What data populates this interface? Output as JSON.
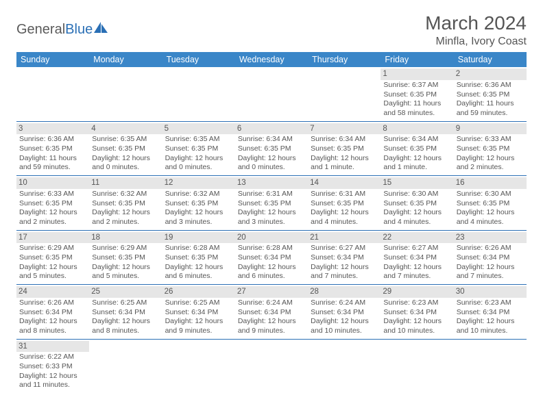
{
  "logo": {
    "part1": "General",
    "part2": "Blue"
  },
  "title": "March 2024",
  "location": "Minfla, Ivory Coast",
  "colors": {
    "header_bg": "#3a86c8",
    "header_text": "#ffffff",
    "daynum_bg": "#e6e6e6",
    "row_border": "#2a6fb5",
    "text": "#555555",
    "logo_blue": "#2a6fb5"
  },
  "day_headers": [
    "Sunday",
    "Monday",
    "Tuesday",
    "Wednesday",
    "Thursday",
    "Friday",
    "Saturday"
  ],
  "weeks": [
    [
      {
        "n": "",
        "sr": "",
        "ss": "",
        "dl": ""
      },
      {
        "n": "",
        "sr": "",
        "ss": "",
        "dl": ""
      },
      {
        "n": "",
        "sr": "",
        "ss": "",
        "dl": ""
      },
      {
        "n": "",
        "sr": "",
        "ss": "",
        "dl": ""
      },
      {
        "n": "",
        "sr": "",
        "ss": "",
        "dl": ""
      },
      {
        "n": "1",
        "sr": "Sunrise: 6:37 AM",
        "ss": "Sunset: 6:35 PM",
        "dl": "Daylight: 11 hours and 58 minutes."
      },
      {
        "n": "2",
        "sr": "Sunrise: 6:36 AM",
        "ss": "Sunset: 6:35 PM",
        "dl": "Daylight: 11 hours and 59 minutes."
      }
    ],
    [
      {
        "n": "3",
        "sr": "Sunrise: 6:36 AM",
        "ss": "Sunset: 6:35 PM",
        "dl": "Daylight: 11 hours and 59 minutes."
      },
      {
        "n": "4",
        "sr": "Sunrise: 6:35 AM",
        "ss": "Sunset: 6:35 PM",
        "dl": "Daylight: 12 hours and 0 minutes."
      },
      {
        "n": "5",
        "sr": "Sunrise: 6:35 AM",
        "ss": "Sunset: 6:35 PM",
        "dl": "Daylight: 12 hours and 0 minutes."
      },
      {
        "n": "6",
        "sr": "Sunrise: 6:34 AM",
        "ss": "Sunset: 6:35 PM",
        "dl": "Daylight: 12 hours and 0 minutes."
      },
      {
        "n": "7",
        "sr": "Sunrise: 6:34 AM",
        "ss": "Sunset: 6:35 PM",
        "dl": "Daylight: 12 hours and 1 minute."
      },
      {
        "n": "8",
        "sr": "Sunrise: 6:34 AM",
        "ss": "Sunset: 6:35 PM",
        "dl": "Daylight: 12 hours and 1 minute."
      },
      {
        "n": "9",
        "sr": "Sunrise: 6:33 AM",
        "ss": "Sunset: 6:35 PM",
        "dl": "Daylight: 12 hours and 2 minutes."
      }
    ],
    [
      {
        "n": "10",
        "sr": "Sunrise: 6:33 AM",
        "ss": "Sunset: 6:35 PM",
        "dl": "Daylight: 12 hours and 2 minutes."
      },
      {
        "n": "11",
        "sr": "Sunrise: 6:32 AM",
        "ss": "Sunset: 6:35 PM",
        "dl": "Daylight: 12 hours and 2 minutes."
      },
      {
        "n": "12",
        "sr": "Sunrise: 6:32 AM",
        "ss": "Sunset: 6:35 PM",
        "dl": "Daylight: 12 hours and 3 minutes."
      },
      {
        "n": "13",
        "sr": "Sunrise: 6:31 AM",
        "ss": "Sunset: 6:35 PM",
        "dl": "Daylight: 12 hours and 3 minutes."
      },
      {
        "n": "14",
        "sr": "Sunrise: 6:31 AM",
        "ss": "Sunset: 6:35 PM",
        "dl": "Daylight: 12 hours and 4 minutes."
      },
      {
        "n": "15",
        "sr": "Sunrise: 6:30 AM",
        "ss": "Sunset: 6:35 PM",
        "dl": "Daylight: 12 hours and 4 minutes."
      },
      {
        "n": "16",
        "sr": "Sunrise: 6:30 AM",
        "ss": "Sunset: 6:35 PM",
        "dl": "Daylight: 12 hours and 4 minutes."
      }
    ],
    [
      {
        "n": "17",
        "sr": "Sunrise: 6:29 AM",
        "ss": "Sunset: 6:35 PM",
        "dl": "Daylight: 12 hours and 5 minutes."
      },
      {
        "n": "18",
        "sr": "Sunrise: 6:29 AM",
        "ss": "Sunset: 6:35 PM",
        "dl": "Daylight: 12 hours and 5 minutes."
      },
      {
        "n": "19",
        "sr": "Sunrise: 6:28 AM",
        "ss": "Sunset: 6:35 PM",
        "dl": "Daylight: 12 hours and 6 minutes."
      },
      {
        "n": "20",
        "sr": "Sunrise: 6:28 AM",
        "ss": "Sunset: 6:34 PM",
        "dl": "Daylight: 12 hours and 6 minutes."
      },
      {
        "n": "21",
        "sr": "Sunrise: 6:27 AM",
        "ss": "Sunset: 6:34 PM",
        "dl": "Daylight: 12 hours and 7 minutes."
      },
      {
        "n": "22",
        "sr": "Sunrise: 6:27 AM",
        "ss": "Sunset: 6:34 PM",
        "dl": "Daylight: 12 hours and 7 minutes."
      },
      {
        "n": "23",
        "sr": "Sunrise: 6:26 AM",
        "ss": "Sunset: 6:34 PM",
        "dl": "Daylight: 12 hours and 7 minutes."
      }
    ],
    [
      {
        "n": "24",
        "sr": "Sunrise: 6:26 AM",
        "ss": "Sunset: 6:34 PM",
        "dl": "Daylight: 12 hours and 8 minutes."
      },
      {
        "n": "25",
        "sr": "Sunrise: 6:25 AM",
        "ss": "Sunset: 6:34 PM",
        "dl": "Daylight: 12 hours and 8 minutes."
      },
      {
        "n": "26",
        "sr": "Sunrise: 6:25 AM",
        "ss": "Sunset: 6:34 PM",
        "dl": "Daylight: 12 hours and 9 minutes."
      },
      {
        "n": "27",
        "sr": "Sunrise: 6:24 AM",
        "ss": "Sunset: 6:34 PM",
        "dl": "Daylight: 12 hours and 9 minutes."
      },
      {
        "n": "28",
        "sr": "Sunrise: 6:24 AM",
        "ss": "Sunset: 6:34 PM",
        "dl": "Daylight: 12 hours and 10 minutes."
      },
      {
        "n": "29",
        "sr": "Sunrise: 6:23 AM",
        "ss": "Sunset: 6:34 PM",
        "dl": "Daylight: 12 hours and 10 minutes."
      },
      {
        "n": "30",
        "sr": "Sunrise: 6:23 AM",
        "ss": "Sunset: 6:34 PM",
        "dl": "Daylight: 12 hours and 10 minutes."
      }
    ],
    [
      {
        "n": "31",
        "sr": "Sunrise: 6:22 AM",
        "ss": "Sunset: 6:33 PM",
        "dl": "Daylight: 12 hours and 11 minutes."
      },
      {
        "n": "",
        "sr": "",
        "ss": "",
        "dl": ""
      },
      {
        "n": "",
        "sr": "",
        "ss": "",
        "dl": ""
      },
      {
        "n": "",
        "sr": "",
        "ss": "",
        "dl": ""
      },
      {
        "n": "",
        "sr": "",
        "ss": "",
        "dl": ""
      },
      {
        "n": "",
        "sr": "",
        "ss": "",
        "dl": ""
      },
      {
        "n": "",
        "sr": "",
        "ss": "",
        "dl": ""
      }
    ]
  ]
}
